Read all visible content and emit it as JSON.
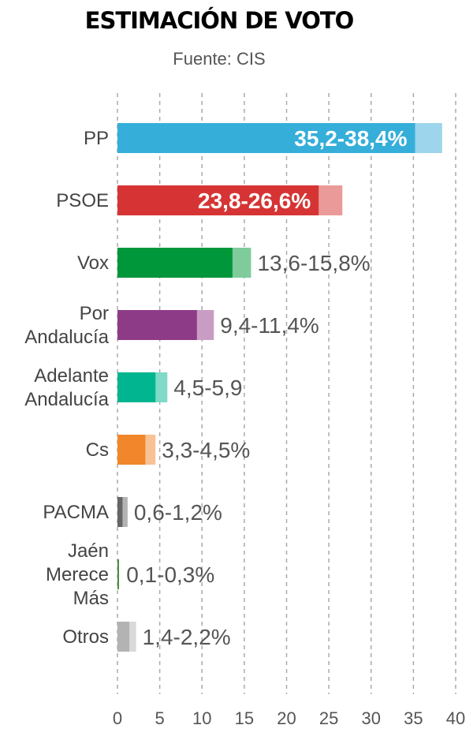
{
  "chart_data": {
    "type": "bar",
    "orientation": "horizontal",
    "title": "ESTIMACIÓN DE VOTO",
    "subtitle": "Fuente: CIS",
    "xlim": [
      0,
      40
    ],
    "xticks": [
      0,
      5,
      10,
      15,
      20,
      25,
      30,
      35,
      40
    ],
    "grid": true,
    "categories": [
      {
        "name": [
          "PP"
        ],
        "min": 35.2,
        "max": 38.4,
        "label": "35,2-38,4%",
        "color": "#35aed9",
        "light": "#9dd5ec",
        "inside": true
      },
      {
        "name": [
          "PSOE"
        ],
        "min": 23.8,
        "max": 26.6,
        "label": "23,8-26,6%",
        "color": "#d63434",
        "light": "#eb9a9a",
        "inside": true
      },
      {
        "name": [
          "Vox"
        ],
        "min": 13.6,
        "max": 15.8,
        "label": "13,6-15,8%",
        "color": "#00963a",
        "light": "#7fcb9c",
        "inside": false
      },
      {
        "name": [
          "Por",
          "Andalucía"
        ],
        "min": 9.4,
        "max": 11.4,
        "label": "9,4-11,4%",
        "color": "#8e3b87",
        "light": "#c99dc3",
        "inside": false
      },
      {
        "name": [
          "Adelante",
          "Andalucía"
        ],
        "min": 4.5,
        "max": 5.9,
        "label": "4,5-5,9",
        "color": "#00b58f",
        "light": "#7fdac7",
        "inside": false
      },
      {
        "name": [
          "Cs"
        ],
        "min": 3.3,
        "max": 4.5,
        "label": "3,3-4,5%",
        "color": "#f1862a",
        "light": "#f8c294",
        "inside": false
      },
      {
        "name": [
          "PACMA"
        ],
        "min": 0.6,
        "max": 1.2,
        "label": "0,6-1,2%",
        "color": "#666666",
        "light": "#b3b3b3",
        "inside": false
      },
      {
        "name": [
          "Jaén",
          "Merece",
          "Más"
        ],
        "min": 0.1,
        "max": 0.3,
        "label": "0,1-0,3%",
        "color": "#4a8f3a",
        "light": "#ffffff",
        "inside": false
      },
      {
        "name": [
          "Otros"
        ],
        "min": 1.4,
        "max": 2.2,
        "label": "1,4-2,2%",
        "color": "#b3b3b3",
        "light": "#d9d9d9",
        "inside": false
      }
    ]
  }
}
